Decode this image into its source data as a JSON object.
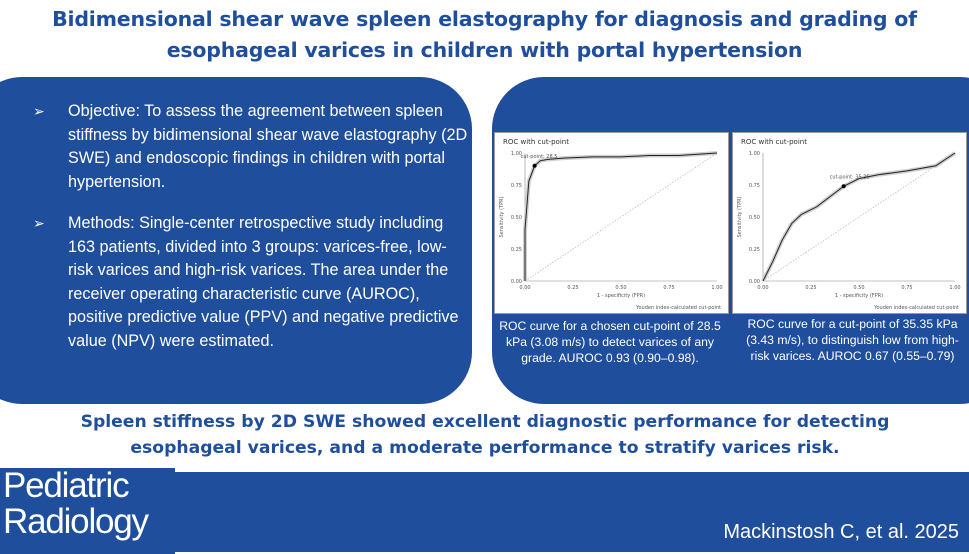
{
  "title": {
    "line1": "Bidimensional shear wave spleen elastography for diagnosis and grading of",
    "line2": "esophageal varices in children with portal hypertension"
  },
  "bullets": [
    {
      "text": "Objective: To assess the agreement between spleen stiffness by bidimensional shear wave elastography (2D SWE) and endoscopic findings in children with portal hypertension."
    },
    {
      "text": "Methods: Single-center retrospective study including 163 patients, divided into 3 groups: varices-free, low-risk varices and high-risk varices. The area under the receiver operating characteristic curve (AUROC), positive predictive value (PPV) and negative predictive value (NPV) were estimated."
    }
  ],
  "bullet_marker": "➢",
  "chart_data": [
    {
      "type": "line",
      "title": "ROC with cut-point",
      "xlabel": "1 - specificity (FPR)",
      "ylabel": "Sensitivity (TPR)",
      "footnote": "Youden index-calculated cut-point",
      "annotation": "cut-point: 28.5",
      "xlim": [
        0,
        1
      ],
      "ylim": [
        0,
        1
      ],
      "x_ticks": [
        "0.00",
        "0.25",
        "0.50",
        "0.75",
        "1.00"
      ],
      "y_ticks": [
        "0.00",
        "0.25",
        "0.50",
        "0.75",
        "1.00"
      ],
      "series": [
        {
          "x": [
            0.0,
            0.0,
            0.02,
            0.05,
            0.08,
            0.12,
            0.2,
            0.35,
            0.5,
            0.65,
            0.8,
            1.0
          ],
          "y": [
            0.0,
            0.4,
            0.78,
            0.9,
            0.94,
            0.95,
            0.96,
            0.97,
            0.97,
            0.98,
            0.98,
            1.0
          ]
        }
      ],
      "cut_point": {
        "x": 0.05,
        "y": 0.9
      }
    },
    {
      "type": "line",
      "title": "ROC with cut-point",
      "xlabel": "1 - specificity (FPR)",
      "ylabel": "Sensitivity (TPR)",
      "footnote": "Youden index-calculated cut-point",
      "annotation": "cut-point: 35.35",
      "xlim": [
        0,
        1
      ],
      "ylim": [
        0,
        1
      ],
      "x_ticks": [
        "0.00",
        "0.25",
        "0.50",
        "0.75",
        "1.00"
      ],
      "y_ticks": [
        "0.00",
        "0.25",
        "0.50",
        "0.75",
        "1.00"
      ],
      "series": [
        {
          "x": [
            0.0,
            0.05,
            0.1,
            0.15,
            0.2,
            0.28,
            0.35,
            0.42,
            0.5,
            0.6,
            0.75,
            0.9,
            1.0
          ],
          "y": [
            0.0,
            0.15,
            0.32,
            0.45,
            0.52,
            0.58,
            0.66,
            0.74,
            0.8,
            0.83,
            0.86,
            0.9,
            1.0
          ]
        }
      ],
      "cut_point": {
        "x": 0.42,
        "y": 0.74
      }
    }
  ],
  "captions": {
    "chart1": "ROC curve for a chosen cut-point of 28.5 kPa (3.08 m/s) to detect varices of any grade. AUROC 0.93 (0.90–0.98).",
    "chart2": "ROC curve for a cut-point of 35.35 kPa (3.43 m/s), to distinguish low from high-risk varices. AUROC 0.67 (0.55–0.79)"
  },
  "conclusion": {
    "line1": "Spleen stiffness by 2D SWE showed excellent diagnostic performance for detecting",
    "line2": "esophageal varices, and a moderate performance to stratify varices risk."
  },
  "journal": {
    "line1": "Pediatric",
    "line2": "Radiology"
  },
  "citation": "Mackinstosh C, et al. 2025",
  "colors": {
    "brand_blue": "#1f4e9c",
    "white": "#ffffff"
  }
}
